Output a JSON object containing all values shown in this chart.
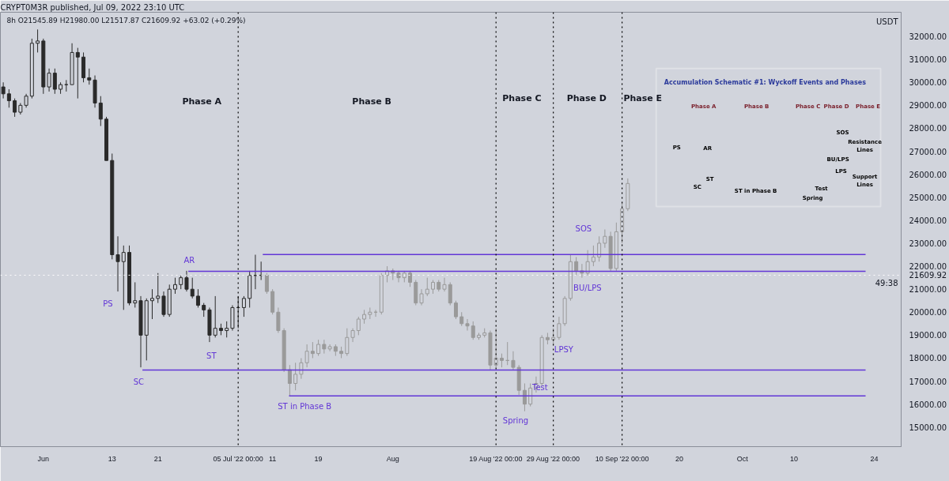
{
  "chart_data": {
    "type": "candlestick",
    "title": "CRYPT0M3R published, Jul 09, 2022 23:10 UTC",
    "subtitle": "8h  O21545.89  H21980.00  L21517.87  C21609.92  +63.02 (+0.29%)",
    "ylabel": "USDT",
    "xlim": [
      "2022-05-24T12:00",
      "2022-10-28T17:00"
    ],
    "ylim": [
      14150,
      33050
    ],
    "xticks": [
      {
        "value": "2022-06-01",
        "label": "Jun"
      },
      {
        "value": "2022-06-13",
        "label": "13"
      },
      {
        "value": "2022-06-21",
        "label": "21"
      },
      {
        "value": "2022-07-11",
        "label": "11"
      },
      {
        "value": "2022-07-19",
        "label": "19"
      },
      {
        "value": "2022-08-01",
        "label": "Aug"
      },
      {
        "value": "2022-09-20",
        "label": "20"
      },
      {
        "value": "2022-10-01",
        "label": "Oct"
      },
      {
        "value": "2022-10-10",
        "label": "10"
      },
      {
        "value": "2022-10-24",
        "label": "24"
      }
    ],
    "yticks": [
      {
        "value": 15000,
        "label": "15000.00"
      },
      {
        "value": 16000,
        "label": "16000.00"
      },
      {
        "value": 17000,
        "label": "17000.00"
      },
      {
        "value": 18000,
        "label": "18000.00"
      },
      {
        "value": 19000,
        "label": "19000.00"
      },
      {
        "value": 20000,
        "label": "20000.00"
      },
      {
        "value": 21000,
        "label": "21000.00"
      },
      {
        "value": 22000,
        "label": "22000.00"
      },
      {
        "value": 23000,
        "label": "23000.00"
      },
      {
        "value": 24000,
        "label": "24000.00"
      },
      {
        "value": 25000,
        "label": "25000.00"
      },
      {
        "value": 26000,
        "label": "26000.00"
      },
      {
        "value": 27000,
        "label": "27000.00"
      },
      {
        "value": 28000,
        "label": "28000.00"
      },
      {
        "value": 29000,
        "label": "29000.00"
      },
      {
        "value": 30000,
        "label": "30000.00"
      },
      {
        "value": 31000,
        "label": "31000.00"
      },
      {
        "value": 32000,
        "label": "32000.00"
      }
    ],
    "series": [
      {
        "color": "#2a2a2a",
        "x": [
          "2022-05-25",
          "2022-05-26",
          "2022-05-27",
          "2022-05-28",
          "2022-05-29",
          "2022-05-30",
          "2022-05-31",
          "2022-06-01",
          "2022-06-02",
          "2022-06-03",
          "2022-06-04",
          "2022-06-05",
          "2022-06-06",
          "2022-06-07",
          "2022-06-08",
          "2022-06-09",
          "2022-06-10",
          "2022-06-11",
          "2022-06-12",
          "2022-06-13",
          "2022-06-14",
          "2022-06-15",
          "2022-06-16",
          "2022-06-17",
          "2022-06-18",
          "2022-06-19",
          "2022-06-20",
          "2022-06-21",
          "2022-06-22",
          "2022-06-23",
          "2022-06-24",
          "2022-06-25",
          "2022-06-26",
          "2022-06-27",
          "2022-06-28",
          "2022-06-29",
          "2022-06-30",
          "2022-07-01",
          "2022-07-02",
          "2022-07-03",
          "2022-07-04",
          "2022-07-05",
          "2022-07-06",
          "2022-07-07",
          "2022-07-08",
          "2022-07-09"
        ],
        "ohlc": [
          [
            29800,
            30000,
            29300,
            29500
          ],
          [
            29500,
            29700,
            28900,
            29200
          ],
          [
            29200,
            29300,
            28500,
            28700
          ],
          [
            28700,
            29100,
            28600,
            29000
          ],
          [
            29000,
            29500,
            28900,
            29400
          ],
          [
            29400,
            31900,
            29300,
            31700
          ],
          [
            31700,
            32300,
            31300,
            31800
          ],
          [
            31800,
            31900,
            29500,
            29800
          ],
          [
            29800,
            30600,
            29600,
            30400
          ],
          [
            30400,
            30600,
            29500,
            29700
          ],
          [
            29700,
            30000,
            29500,
            29900
          ],
          [
            29900,
            30100,
            29600,
            29900
          ],
          [
            29900,
            31700,
            29900,
            31300
          ],
          [
            31300,
            31500,
            29300,
            31100
          ],
          [
            31100,
            31300,
            30000,
            30200
          ],
          [
            30200,
            30600,
            29900,
            30100
          ],
          [
            30100,
            30300,
            28900,
            29100
          ],
          [
            29100,
            29400,
            28100,
            28400
          ],
          [
            28400,
            28500,
            26600,
            26600
          ],
          [
            26600,
            26900,
            22300,
            22500
          ],
          [
            22500,
            23300,
            20900,
            22200
          ],
          [
            22200,
            22900,
            20100,
            22600
          ],
          [
            22600,
            22900,
            20300,
            20400
          ],
          [
            20400,
            21300,
            20200,
            20500
          ],
          [
            20500,
            20700,
            17600,
            19000
          ],
          [
            19000,
            20600,
            17900,
            20500
          ],
          [
            20500,
            21000,
            19700,
            20600
          ],
          [
            20600,
            21700,
            20400,
            20700
          ],
          [
            20700,
            20900,
            19800,
            19900
          ],
          [
            19900,
            21200,
            19800,
            21000
          ],
          [
            21000,
            21500,
            20800,
            21200
          ],
          [
            21200,
            21600,
            21000,
            21500
          ],
          [
            21500,
            21800,
            20900,
            21000
          ],
          [
            21000,
            21500,
            20600,
            20700
          ],
          [
            20700,
            21000,
            20200,
            20300
          ],
          [
            20300,
            20400,
            19800,
            20100
          ],
          [
            20100,
            20200,
            18700,
            19000
          ],
          [
            19000,
            20700,
            18900,
            19300
          ],
          [
            19300,
            19500,
            19000,
            19200
          ],
          [
            19200,
            19600,
            18900,
            19300
          ],
          [
            19300,
            20300,
            19200,
            20200
          ],
          [
            20200,
            20700,
            19300,
            20200
          ],
          [
            20200,
            20700,
            19800,
            20600
          ],
          [
            20600,
            21800,
            20200,
            21600
          ],
          [
            21600,
            22500,
            21000,
            21600
          ],
          [
            21600,
            22200,
            21400,
            21610
          ]
        ]
      },
      {
        "color": "#9a9a9a",
        "x": [
          "2022-07-10",
          "2022-07-11",
          "2022-07-12",
          "2022-07-13",
          "2022-07-14",
          "2022-07-15",
          "2022-07-16",
          "2022-07-17",
          "2022-07-18",
          "2022-07-19",
          "2022-07-20",
          "2022-07-21",
          "2022-07-22",
          "2022-07-23",
          "2022-07-24",
          "2022-07-25",
          "2022-07-26",
          "2022-07-27",
          "2022-07-28",
          "2022-07-29",
          "2022-07-30",
          "2022-07-31",
          "2022-08-01",
          "2022-08-02",
          "2022-08-03",
          "2022-08-04",
          "2022-08-05",
          "2022-08-06",
          "2022-08-07",
          "2022-08-08",
          "2022-08-09",
          "2022-08-10",
          "2022-08-11",
          "2022-08-12",
          "2022-08-13",
          "2022-08-14",
          "2022-08-15",
          "2022-08-16",
          "2022-08-17",
          "2022-08-18",
          "2022-08-19",
          "2022-08-20",
          "2022-08-21",
          "2022-08-22",
          "2022-08-23",
          "2022-08-24",
          "2022-08-25",
          "2022-08-26",
          "2022-08-27",
          "2022-08-28",
          "2022-08-29",
          "2022-08-30",
          "2022-08-31",
          "2022-09-01",
          "2022-09-02",
          "2022-09-03",
          "2022-09-04",
          "2022-09-05",
          "2022-09-06",
          "2022-09-07",
          "2022-09-08",
          "2022-09-09",
          "2022-09-10",
          "2022-09-11"
        ],
        "ohlc": [
          [
            21610,
            21700,
            20800,
            20900
          ],
          [
            20900,
            21000,
            19900,
            20000
          ],
          [
            20000,
            20200,
            19100,
            19200
          ],
          [
            19200,
            19300,
            17400,
            17500
          ],
          [
            17500,
            17700,
            16360,
            16900
          ],
          [
            16900,
            17800,
            16600,
            17300
          ],
          [
            17300,
            18000,
            17100,
            17800
          ],
          [
            17800,
            18600,
            17600,
            18300
          ],
          [
            18300,
            18700,
            18000,
            18200
          ],
          [
            18200,
            18800,
            18100,
            18600
          ],
          [
            18600,
            18800,
            18200,
            18400
          ],
          [
            18400,
            18600,
            18300,
            18500
          ],
          [
            18500,
            18600,
            18100,
            18300
          ],
          [
            18300,
            18500,
            18000,
            18200
          ],
          [
            18200,
            19300,
            18100,
            18900
          ],
          [
            18900,
            19300,
            18700,
            19200
          ],
          [
            19200,
            19800,
            19000,
            19700
          ],
          [
            19700,
            20100,
            19500,
            19900
          ],
          [
            19900,
            20200,
            19700,
            20000
          ],
          [
            20000,
            20100,
            19800,
            20000
          ],
          [
            20000,
            21700,
            19900,
            21600
          ],
          [
            21600,
            22000,
            21300,
            21800
          ],
          [
            21800,
            21900,
            21400,
            21700
          ],
          [
            21700,
            21800,
            21300,
            21500
          ],
          [
            21500,
            21800,
            21300,
            21700
          ],
          [
            21700,
            21800,
            21100,
            21300
          ],
          [
            21300,
            21400,
            20300,
            20400
          ],
          [
            20400,
            21000,
            20300,
            20800
          ],
          [
            20800,
            21500,
            20700,
            21000
          ],
          [
            21000,
            21400,
            20800,
            21300
          ],
          [
            21300,
            21400,
            20900,
            21000
          ],
          [
            21000,
            21500,
            20900,
            21200
          ],
          [
            21200,
            21300,
            20300,
            20400
          ],
          [
            20400,
            20500,
            19700,
            19800
          ],
          [
            19800,
            20000,
            19400,
            19500
          ],
          [
            19500,
            19700,
            19200,
            19400
          ],
          [
            19400,
            19600,
            18800,
            18900
          ],
          [
            18900,
            19100,
            18800,
            19000
          ],
          [
            19000,
            19300,
            18900,
            19100
          ],
          [
            19100,
            19200,
            17500,
            17700
          ],
          [
            17700,
            19300,
            17600,
            18000
          ],
          [
            18000,
            18200,
            17600,
            17900
          ],
          [
            17900,
            18700,
            17700,
            17900
          ],
          [
            17900,
            18300,
            17500,
            17600
          ],
          [
            17600,
            17700,
            16400,
            16600
          ],
          [
            16600,
            16900,
            15690,
            16000
          ],
          [
            16000,
            16900,
            15900,
            16700
          ],
          [
            16700,
            17200,
            16500,
            16900
          ],
          [
            16900,
            19000,
            16800,
            18900
          ],
          [
            18900,
            19100,
            18600,
            18800
          ],
          [
            18800,
            19300,
            18600,
            18900
          ],
          [
            18900,
            19800,
            18800,
            19500
          ],
          [
            19500,
            20700,
            19400,
            20600
          ],
          [
            20600,
            22500,
            20500,
            22200
          ],
          [
            22200,
            22400,
            21600,
            21800
          ],
          [
            21800,
            22100,
            21500,
            21700
          ],
          [
            21700,
            22700,
            21600,
            22200
          ],
          [
            22200,
            22900,
            22000,
            22400
          ],
          [
            22400,
            23300,
            22200,
            23000
          ],
          [
            23000,
            23600,
            22800,
            23300
          ],
          [
            23300,
            23500,
            21800,
            21900
          ],
          [
            21900,
            23900,
            21800,
            23500
          ],
          [
            23500,
            24800,
            23000,
            24500
          ],
          [
            24500,
            25820,
            24400,
            25600
          ]
        ]
      },
      {
        "type": "line",
        "color": "#6236d6",
        "x": [
          "2022-06-18T07:00",
          "2022-10-22T12:00"
        ],
        "values": [
          17480,
          17480
        ]
      },
      {
        "type": "line",
        "color": "#6236d6",
        "x": [
          "2022-07-13T21:00",
          "2022-10-22T12:00"
        ],
        "values": [
          16360,
          16360
        ]
      },
      {
        "type": "line",
        "color": "#6236d6",
        "x": [
          "2022-06-26T07:00",
          "2022-10-22T12:00"
        ],
        "values": [
          21780,
          21780
        ]
      },
      {
        "type": "line",
        "color": "#6236d6",
        "x": [
          "2022-07-09T07:00",
          "2022-10-22T12:00"
        ],
        "values": [
          22510,
          22510
        ]
      }
    ],
    "ref_lines": [
      {
        "axis": "x",
        "value": "2022-07-05",
        "label": "05 Jul '22 00:00",
        "color": "#000000",
        "line_style": "dotted"
      },
      {
        "axis": "x",
        "value": "2022-08-19",
        "label": "19 Aug '22 00:00",
        "color": "#000000",
        "line_style": "dotted"
      },
      {
        "axis": "x",
        "value": "2022-08-29",
        "label": "29 Aug '22 00:00",
        "color": "#000000",
        "line_style": "dotted"
      },
      {
        "axis": "x",
        "value": "2022-09-10",
        "label": "10 Sep '22 00:00",
        "color": "#000000",
        "line_style": "dotted"
      },
      {
        "axis": "y",
        "value": 21609.92,
        "label": "21609.92",
        "color": "#ffffff",
        "line_style": "dotted"
      }
    ],
    "annotations": [
      "Phase A",
      "Phase B",
      "Phase C",
      "Phase D",
      "Phase E",
      "PS",
      "SC",
      "AR",
      "ST",
      "ST in Phase B",
      "Spring",
      "Test",
      "LPSY",
      "BU/LPS",
      "SOS",
      "49:38",
      "Accumulation Schematic #1: Wyckoff Events and Phases",
      "Phase A",
      "Phase B",
      "Phase C",
      "Phase D",
      "Phase E",
      "PS",
      "AR",
      "SC",
      "ST",
      "ST in Phase B",
      "Spring",
      "Test",
      "LPS",
      "BU/LPS",
      "SOS",
      "Resistance Lines",
      "Support Lines"
    ]
  }
}
